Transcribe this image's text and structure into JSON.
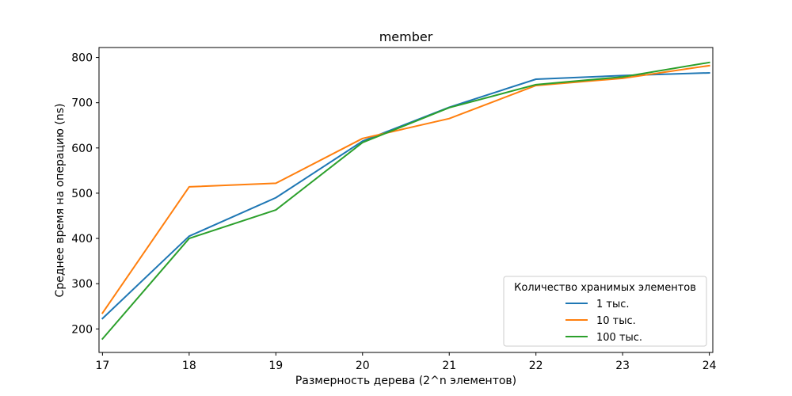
{
  "chart_data": {
    "type": "line",
    "title": "member",
    "xlabel": "Размерность дерева (2^n элементов)",
    "ylabel": "Среднее время на операцию (ns)",
    "x": [
      17,
      18,
      19,
      20,
      21,
      22,
      23,
      24
    ],
    "x_ticks": [
      17,
      18,
      19,
      20,
      21,
      22,
      23,
      24
    ],
    "y_ticks": [
      200,
      300,
      400,
      500,
      600,
      700,
      800
    ],
    "ylim": [
      148,
      822
    ],
    "xlim": [
      16.96,
      24.04
    ],
    "grid": false,
    "legend": {
      "title": "Количество хранимых элементов",
      "placement": "lower-right"
    },
    "series": [
      {
        "name": "1 тыс.",
        "color": "#1f77b4",
        "values": [
          223,
          405,
          490,
          615,
          690,
          752,
          760,
          766
        ]
      },
      {
        "name": "10 тыс.",
        "color": "#ff7f0e",
        "values": [
          235,
          514,
          522,
          621,
          665,
          738,
          754,
          782
        ]
      },
      {
        "name": "100 тыс.",
        "color": "#2ca02c",
        "values": [
          178,
          400,
          463,
          612,
          689,
          740,
          757,
          789
        ]
      }
    ]
  }
}
